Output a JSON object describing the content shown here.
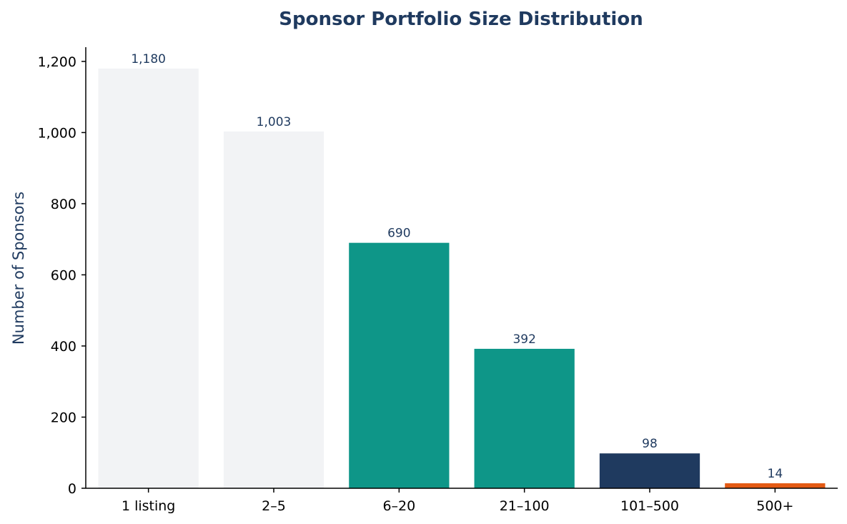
{
  "chart_data": {
    "type": "bar",
    "title": "Sponsor Portfolio Size Distribution",
    "xlabel": "",
    "ylabel": "Number of Sponsors",
    "categories": [
      "1 listing",
      "2–5",
      "6–20",
      "21–100",
      "101–500",
      "500+"
    ],
    "values": [
      1180,
      1003,
      690,
      392,
      98,
      14
    ],
    "value_labels": [
      "1,180",
      "1,003",
      "690",
      "392",
      "98",
      "14"
    ],
    "bar_colors": [
      "#f2f3f5",
      "#f2f3f5",
      "#0e9688",
      "#0e9688",
      "#1f3a5f",
      "#e35a14"
    ],
    "ylim": [
      0,
      1240
    ],
    "yticks": [
      0,
      200,
      400,
      600,
      800,
      1000,
      1200
    ],
    "ytick_labels": [
      "0",
      "200",
      "400",
      "600",
      "800",
      "1,000",
      "1,200"
    ],
    "grid": false,
    "legend": "none"
  },
  "colors": {
    "title": "#1f3a5f",
    "axis_label": "#1f3a5f",
    "data_label": "#1f3a5f"
  }
}
